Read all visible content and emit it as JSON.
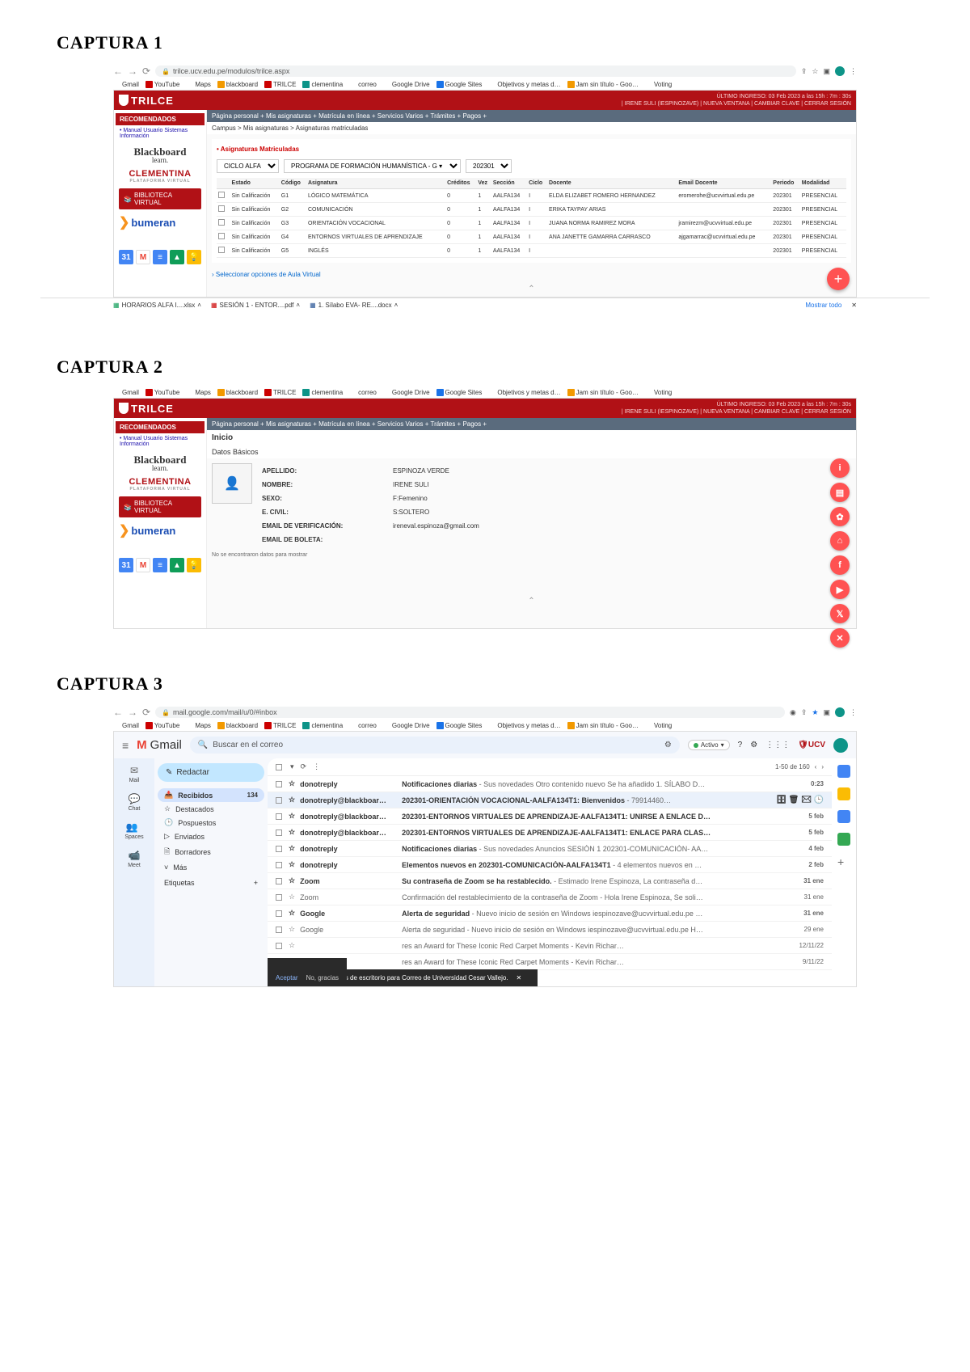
{
  "headings": {
    "c1": "CAPTURA 1",
    "c2": "CAPTURA 2",
    "c3": "CAPTURA 3"
  },
  "url1": "trilce.ucv.edu.pe/modulos/trilce.aspx",
  "url3": "mail.google.com/mail/u/0/#inbox",
  "bookmarks": [
    "Gmail",
    "YouTube",
    "Maps",
    "blackboard",
    "TRILCE",
    "clementina",
    "correo",
    "Google Drive",
    "Google Sites",
    "Objetivos y metas d…",
    "Jam sin título - Goo…",
    "Voting"
  ],
  "trilce": {
    "brand": "TRILCE",
    "login_info": "ÚLTIMO INGRESO: 03 Feb 2023 a las 15h : 7m : 30s",
    "user_line": "| IRENE SULI (IESPINOZAVE) | NUEVA VENTANA | CAMBIAR CLAVE | CERRAR SESIÓN",
    "side_title": "RECOMENDADOS",
    "manual": "• Manual Usuario Sistemas Información",
    "bb1": "Blackboard",
    "bb2": "learn.",
    "clem": "CLEMENTINA",
    "clem_sub": "PLATAFORMA VIRTUAL",
    "biblio": "BIBLIOTECA VIRTUAL",
    "bumeran": "bumeran",
    "crumbs": "Página personal +   Mis asignaturas +   Matrícula en línea +   Servicios Varios +   Trámites +   Pagos +",
    "crumb2": "Campus > Mis asignaturas > Asignaturas matriculadas",
    "asig": "• Asignaturas Matriculadas",
    "f1": "CICLO ALFA",
    "f2": "PROGRAMA DE FORMACIÓN HUMANÍSTICA - G ▾",
    "f3": "202301",
    "th": [
      "",
      "Estado",
      "Código",
      "Asignatura",
      "Créditos",
      "Vez",
      "Sección",
      "Ciclo",
      "Docente",
      "Email Docente",
      "Periodo",
      "Modalidad"
    ],
    "rows": [
      [
        "",
        "Sin Calificación",
        "G1",
        "LÓGICO MATEMÁTICA",
        "0",
        "1",
        "AALFA134",
        "I",
        "ELDA ELIZABET ROMERO HERNANDEZ",
        "eromerohe@ucvvirtual.edu.pe",
        "202301",
        "PRESENCIAL"
      ],
      [
        "",
        "Sin Calificación",
        "G2",
        "COMUNICACIÓN",
        "0",
        "1",
        "AALFA134",
        "I",
        "ERIKA TAYPAY ARIAS",
        "",
        "202301",
        "PRESENCIAL"
      ],
      [
        "",
        "Sin Calificación",
        "G3",
        "ORIENTACIÓN VOCACIONAL",
        "0",
        "1",
        "AALFA134",
        "I",
        "JUANA NORMA RAMIREZ MORA",
        "jramirezm@ucvvirtual.edu.pe",
        "202301",
        "PRESENCIAL"
      ],
      [
        "",
        "Sin Calificación",
        "G4",
        "ENTORNOS VIRTUALES DE APRENDIZAJE",
        "0",
        "1",
        "AALFA134",
        "I",
        "ANA JANETTE GAMARRA CARRASCO",
        "ajgamarrac@ucvvirtual.edu.pe",
        "202301",
        "PRESENCIAL"
      ],
      [
        "",
        "Sin Calificación",
        "G5",
        "INGLÉS",
        "0",
        "1",
        "AALFA134",
        "I",
        "",
        "",
        "202301",
        "PRESENCIAL"
      ]
    ],
    "select_line": "› Seleccionar opciones de Aula Virtual",
    "dl": [
      "HORARIOS ALFA I....xlsx",
      "SESIÓN 1 - ENTOR....pdf",
      "1. Sílabo EVA- RE....docx"
    ],
    "show_all": "Mostrar todo"
  },
  "c2": {
    "inicio": "Inicio",
    "datos": "Datos Básicos",
    "kv": [
      [
        "APELLIDO:",
        "ESPINOZA VERDE"
      ],
      [
        "NOMBRE:",
        "IRENE SULI"
      ],
      [
        "SEXO:",
        "F:Femenino"
      ],
      [
        "E. CIVIL:",
        "S:SOLTERO"
      ],
      [
        "EMAIL DE VERIFICACIÓN:",
        "ireneval.espinoza@gmail.com"
      ],
      [
        "EMAIL DE BOLETA:",
        ""
      ]
    ],
    "nodata": "No se encontraron datos para mostrar"
  },
  "gmail": {
    "brand": "Gmail",
    "search_ph": "Buscar en el correo",
    "active": "Activo",
    "compose": "Redactar",
    "rail": [
      "Mail",
      "Chat",
      "Spaces",
      "Meet"
    ],
    "nav": [
      {
        "ico": "📥",
        "label": "Recibidos",
        "cnt": "134",
        "sel": true
      },
      {
        "ico": "☆",
        "label": "Destacados"
      },
      {
        "ico": "🕒",
        "label": "Pospuestos"
      },
      {
        "ico": "▷",
        "label": "Enviados"
      },
      {
        "ico": "🗎",
        "label": "Borradores"
      },
      {
        "ico": "˅",
        "label": "Más"
      }
    ],
    "labels": "Etiquetas",
    "count": "1-50 de 160",
    "rows": [
      {
        "u": true,
        "from": "donotreply",
        "subj": "Notificaciones diarias",
        "body": " - Sus novedades Otro contenido nuevo Se ha añadido 1. SÍLABO D…",
        "date": "0:23"
      },
      {
        "u": true,
        "hl": true,
        "from": "donotreply@blackboar…",
        "subj": "202301-ORIENTACIÓN VOCACIONAL-AALFA134T1: Bienvenidos",
        "body": " - 79914460…",
        "date": "",
        "icons": true
      },
      {
        "u": true,
        "from": "donotreply@blackboar…",
        "subj": "202301-ENTORNOS VIRTUALES DE APRENDIZAJE-AALFA134T1: UNIRSE A ENLACE D…",
        "body": "",
        "date": "5 feb"
      },
      {
        "u": true,
        "from": "donotreply@blackboar…",
        "subj": "202301-ENTORNOS VIRTUALES DE APRENDIZAJE-AALFA134T1: ENLACE PARA CLAS…",
        "body": "",
        "date": "5 feb"
      },
      {
        "u": true,
        "from": "donotreply",
        "subj": "Notificaciones diarias",
        "body": " - Sus novedades Anuncios SESIÓN 1 202301-COMUNICACIÓN- AA…",
        "date": "4 feb"
      },
      {
        "u": true,
        "from": "donotreply",
        "subj": "Elementos nuevos en 202301-COMUNICACIÓN-AALFA134T1",
        "body": " - 4 elementos nuevos en …",
        "date": "2 feb"
      },
      {
        "u": true,
        "from": "Zoom",
        "subj": "Su contraseña de Zoom se ha restablecido.",
        "body": " - Estimado Irene Espinoza, La contraseña d…",
        "date": "31 ene"
      },
      {
        "u": false,
        "from": "Zoom",
        "subj": "Confirmación del restablecimiento de la contraseña de Zoom",
        "body": " - Hola Irene Espinoza, Se soli…",
        "date": "31 ene"
      },
      {
        "u": true,
        "from": "Google",
        "subj": "Alerta de seguridad",
        "body": " - Nuevo inicio de sesión en Windows iespinozave@ucvvirtual.edu.pe …",
        "date": "31 ene"
      },
      {
        "u": false,
        "from": "Google",
        "subj": "Alerta de seguridad",
        "body": " - Nuevo inicio de sesión en Windows iespinozave@ucvvirtual.edu.pe H…",
        "date": "29 ene"
      },
      {
        "u": false,
        "from": "",
        "subj": "",
        "body": "res an Award for These Iconic Red Carpet Moments - Kevin Richar…",
        "date": "12/11/22"
      },
      {
        "u": false,
        "from": "",
        "subj": "",
        "body": "res an Award for These Iconic Red Carpet Moments - Kevin Richar…",
        "date": "9/11/22"
      }
    ],
    "notif": "Habilita las notificaciones de escritorio para Correo de Universidad Cesar Vallejo.",
    "accept": "Aceptar",
    "no": "No, gracias"
  }
}
